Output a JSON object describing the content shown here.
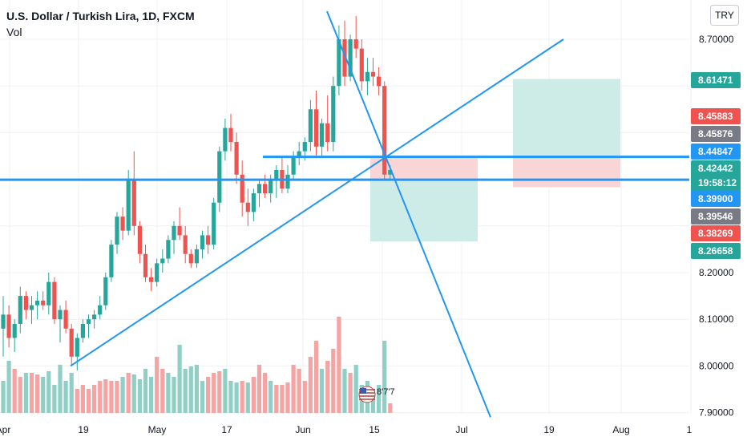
{
  "legend": {
    "symbol": "U.S. Dollar / Turkish Lira, 1D, FXCM",
    "indicator": "Vol"
  },
  "currency_badge": "TRY",
  "countdown": "19:58:12",
  "event_marker": "8'7'7",
  "colors": {
    "up": "#26a69a",
    "down": "#ef5350",
    "up_vol": "#8fcfc6",
    "down_vol": "#f5a3a3",
    "line": "#2196f3",
    "grid": "#eef0f3",
    "target_zone": "#cdebe7",
    "stop_zone": "#f9d5d6"
  },
  "chart_data": {
    "type": "candlestick",
    "y_ticks": [
      "8.70000",
      "8.20000",
      "8.10000",
      "8.00000",
      "7.90000"
    ],
    "x_ticks": [
      "Apr",
      "19",
      "May",
      "17",
      "Jun",
      "15",
      "Jul",
      "19",
      "Aug",
      "1"
    ],
    "price_tags": [
      {
        "label": "8.61471",
        "color": "#26a69a"
      },
      {
        "label": "8.45883",
        "color": "#ef5350"
      },
      {
        "label": "8.45876",
        "color": "#787b86"
      },
      {
        "label": "8.44847",
        "color": "#2196f3"
      },
      {
        "label": "8.42442",
        "color": "#26a69a"
      },
      {
        "label": "8.39900",
        "color": "#2196f3"
      },
      {
        "label": "8.39546",
        "color": "#787b86"
      },
      {
        "label": "8.38269",
        "color": "#ef5350"
      },
      {
        "label": "8.26658",
        "color": "#26a69a"
      }
    ],
    "candles": [
      [
        8.08,
        8.15,
        8.02,
        8.11
      ],
      [
        8.11,
        8.13,
        8.04,
        8.06
      ],
      [
        8.06,
        8.1,
        8.03,
        8.09
      ],
      [
        8.09,
        8.17,
        8.07,
        8.15
      ],
      [
        8.15,
        8.16,
        8.1,
        8.12
      ],
      [
        8.12,
        8.15,
        8.09,
        8.13
      ],
      [
        8.13,
        8.16,
        8.1,
        8.14
      ],
      [
        8.14,
        8.16,
        8.12,
        8.13
      ],
      [
        8.13,
        8.2,
        8.11,
        8.18
      ],
      [
        8.18,
        8.19,
        8.09,
        8.1
      ],
      [
        8.1,
        8.13,
        8.05,
        8.12
      ],
      [
        8.12,
        8.14,
        8.07,
        8.08
      ],
      [
        8.08,
        8.09,
        8.0,
        8.02
      ],
      [
        8.02,
        8.07,
        7.99,
        8.06
      ],
      [
        8.06,
        8.1,
        8.05,
        8.09
      ],
      [
        8.09,
        8.11,
        8.06,
        8.1
      ],
      [
        8.1,
        8.12,
        8.08,
        8.11
      ],
      [
        8.11,
        8.15,
        8.1,
        8.13
      ],
      [
        8.13,
        8.2,
        8.12,
        8.19
      ],
      [
        8.19,
        8.27,
        8.18,
        8.26
      ],
      [
        8.26,
        8.33,
        8.24,
        8.32
      ],
      [
        8.32,
        8.34,
        8.27,
        8.29
      ],
      [
        8.29,
        8.42,
        8.28,
        8.4
      ],
      [
        8.4,
        8.46,
        8.28,
        8.3
      ],
      [
        8.3,
        8.31,
        8.22,
        8.24
      ],
      [
        8.24,
        8.26,
        8.18,
        8.19
      ],
      [
        8.19,
        8.21,
        8.16,
        8.18
      ],
      [
        8.18,
        8.23,
        8.17,
        8.22
      ],
      [
        8.22,
        8.25,
        8.2,
        8.23
      ],
      [
        8.23,
        8.28,
        8.22,
        8.27
      ],
      [
        8.27,
        8.31,
        8.24,
        8.3
      ],
      [
        8.3,
        8.34,
        8.27,
        8.28
      ],
      [
        8.28,
        8.3,
        8.22,
        8.24
      ],
      [
        8.24,
        8.25,
        8.21,
        8.22
      ],
      [
        8.22,
        8.26,
        8.21,
        8.25
      ],
      [
        8.25,
        8.29,
        8.23,
        8.28
      ],
      [
        8.28,
        8.3,
        8.24,
        8.26
      ],
      [
        8.26,
        8.36,
        8.25,
        8.35
      ],
      [
        8.35,
        8.47,
        8.33,
        8.46
      ],
      [
        8.46,
        8.53,
        8.44,
        8.51
      ],
      [
        8.51,
        8.54,
        8.46,
        8.48
      ],
      [
        8.48,
        8.5,
        8.39,
        8.41
      ],
      [
        8.41,
        8.44,
        8.32,
        8.35
      ],
      [
        8.35,
        8.38,
        8.3,
        8.33
      ],
      [
        8.33,
        8.38,
        8.31,
        8.37
      ],
      [
        8.37,
        8.4,
        8.34,
        8.39
      ],
      [
        8.39,
        8.41,
        8.36,
        8.37
      ],
      [
        8.37,
        8.41,
        8.35,
        8.4
      ],
      [
        8.4,
        8.43,
        8.36,
        8.42
      ],
      [
        8.42,
        8.45,
        8.37,
        8.38
      ],
      [
        8.38,
        8.43,
        8.37,
        8.41
      ],
      [
        8.41,
        8.46,
        8.4,
        8.45
      ],
      [
        8.45,
        8.48,
        8.43,
        8.46
      ],
      [
        8.46,
        8.49,
        8.44,
        8.48
      ],
      [
        8.48,
        8.57,
        8.46,
        8.55
      ],
      [
        8.55,
        8.59,
        8.45,
        8.47
      ],
      [
        8.47,
        8.53,
        8.45,
        8.52
      ],
      [
        8.52,
        8.58,
        8.46,
        8.48
      ],
      [
        8.48,
        8.62,
        8.46,
        8.6
      ],
      [
        8.6,
        8.73,
        8.58,
        8.7
      ],
      [
        8.7,
        8.74,
        8.6,
        8.62
      ],
      [
        8.62,
        8.71,
        8.61,
        8.7
      ],
      [
        8.7,
        8.75,
        8.66,
        8.68
      ],
      [
        8.68,
        8.7,
        8.59,
        8.61
      ],
      [
        8.61,
        8.66,
        8.58,
        8.63
      ],
      [
        8.63,
        8.66,
        8.6,
        8.62
      ],
      [
        8.62,
        8.64,
        8.58,
        8.6
      ],
      [
        8.6,
        8.61,
        8.4,
        8.41
      ],
      [
        8.41,
        8.43,
        8.4,
        8.42
      ]
    ],
    "volumes": [
      [
        40,
        1
      ],
      [
        65,
        1
      ],
      [
        55,
        0
      ],
      [
        45,
        0
      ],
      [
        50,
        1
      ],
      [
        50,
        0
      ],
      [
        48,
        0
      ],
      [
        45,
        1
      ],
      [
        52,
        1
      ],
      [
        35,
        1
      ],
      [
        60,
        1
      ],
      [
        40,
        1
      ],
      [
        50,
        1
      ],
      [
        30,
        0
      ],
      [
        35,
        0
      ],
      [
        30,
        0
      ],
      [
        35,
        0
      ],
      [
        40,
        0
      ],
      [
        42,
        0
      ],
      [
        40,
        0
      ],
      [
        40,
        0
      ],
      [
        45,
        1
      ],
      [
        50,
        0
      ],
      [
        48,
        1
      ],
      [
        42,
        1
      ],
      [
        55,
        1
      ],
      [
        45,
        1
      ],
      [
        70,
        0
      ],
      [
        55,
        0
      ],
      [
        50,
        1
      ],
      [
        45,
        1
      ],
      [
        85,
        1
      ],
      [
        55,
        1
      ],
      [
        58,
        1
      ],
      [
        60,
        1
      ],
      [
        40,
        1
      ],
      [
        45,
        0
      ],
      [
        50,
        0
      ],
      [
        52,
        0
      ],
      [
        55,
        1
      ],
      [
        40,
        1
      ],
      [
        38,
        1
      ],
      [
        40,
        0
      ],
      [
        38,
        1
      ],
      [
        45,
        0
      ],
      [
        60,
        0
      ],
      [
        50,
        0
      ],
      [
        40,
        1
      ],
      [
        35,
        0
      ],
      [
        35,
        0
      ],
      [
        38,
        0
      ],
      [
        60,
        0
      ],
      [
        55,
        0
      ],
      [
        40,
        0
      ],
      [
        70,
        0
      ],
      [
        90,
        0
      ],
      [
        55,
        1
      ],
      [
        65,
        0
      ],
      [
        80,
        0
      ],
      [
        120,
        0
      ],
      [
        55,
        1
      ],
      [
        50,
        0
      ],
      [
        60,
        1
      ],
      [
        35,
        1
      ],
      [
        40,
        1
      ],
      [
        30,
        1
      ],
      [
        35,
        1
      ],
      [
        90,
        1
      ],
      [
        12,
        0
      ]
    ]
  }
}
